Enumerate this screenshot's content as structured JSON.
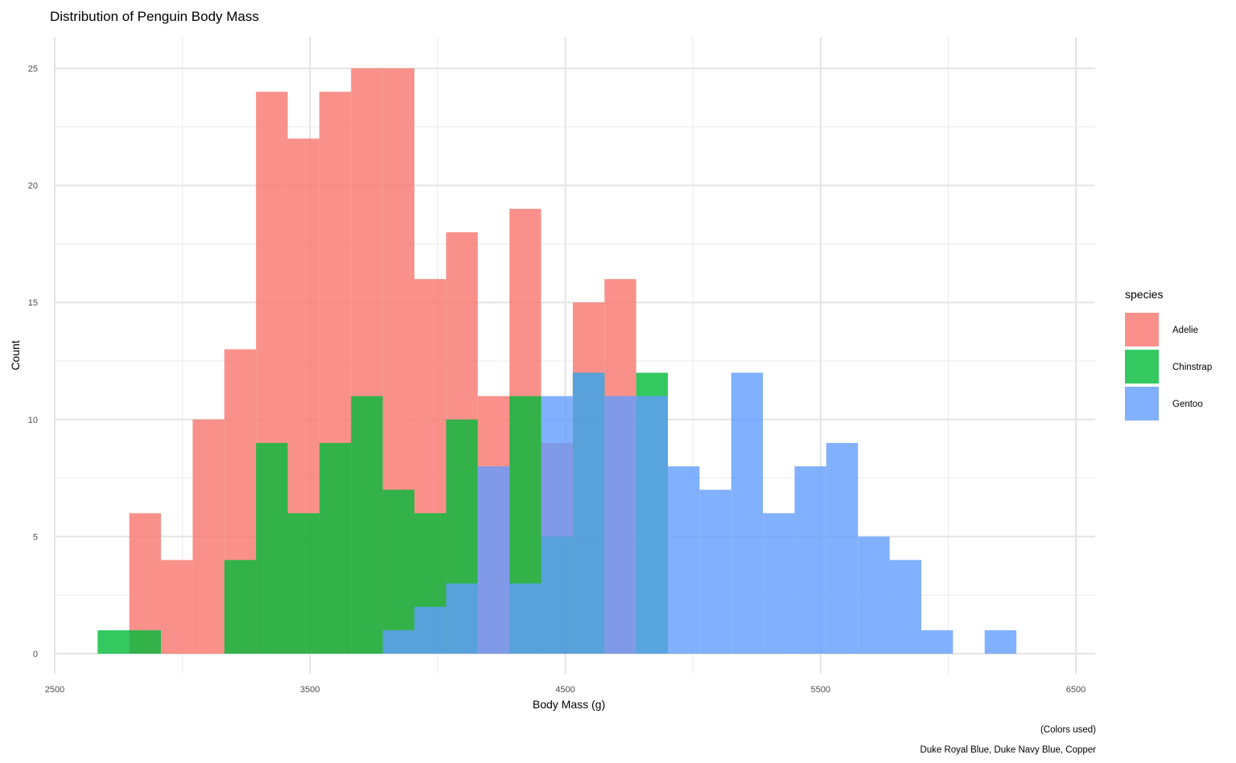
{
  "chart_data": {
    "type": "bar",
    "subtype": "overlaid-histogram",
    "title": "Distribution of Penguin Body Mass",
    "xlabel": "Body Mass (g)",
    "ylabel": "Count",
    "xlim": [
      2500,
      6500
    ],
    "ylim": [
      0,
      25
    ],
    "x_ticks": [
      "2500",
      "3500",
      "4500",
      "5500",
      "6500"
    ],
    "y_ticks": [
      "0",
      "5",
      "10",
      "15",
      "20",
      "25"
    ],
    "grid": true,
    "legend_title": "species",
    "legend_position": "right",
    "bin_width": 124.1,
    "bin_start": 2668,
    "series": [
      {
        "name": "Adelie",
        "color": "#F8766D",
        "opacity": 0.8,
        "values": [
          0,
          6,
          4,
          10,
          13,
          24,
          22,
          24,
          25,
          25,
          16,
          18,
          11,
          19,
          9,
          15,
          16,
          0,
          0,
          0,
          0,
          0,
          0,
          0,
          0,
          0,
          0,
          0,
          0,
          0,
          0
        ]
      },
      {
        "name": "Chinstrap",
        "color": "#00BA38",
        "opacity": 0.8,
        "values": [
          1,
          1,
          0,
          0,
          4,
          9,
          6,
          9,
          11,
          7,
          6,
          10,
          0,
          11,
          5,
          12,
          0,
          12,
          0,
          0,
          0,
          0,
          0,
          0,
          0,
          0,
          0,
          0,
          0,
          0,
          0
        ]
      },
      {
        "name": "Gentoo",
        "color": "#619CFF",
        "opacity": 0.8,
        "values": [
          0,
          0,
          0,
          0,
          0,
          0,
          0,
          0,
          0,
          1,
          2,
          3,
          8,
          3,
          11,
          12,
          11,
          11,
          8,
          7,
          12,
          6,
          8,
          9,
          5,
          4,
          1,
          0,
          1,
          0,
          0
        ]
      }
    ],
    "caption_lines": [
      "(Colors used)",
      "Duke Royal Blue, Duke Navy Blue, Copper"
    ]
  }
}
